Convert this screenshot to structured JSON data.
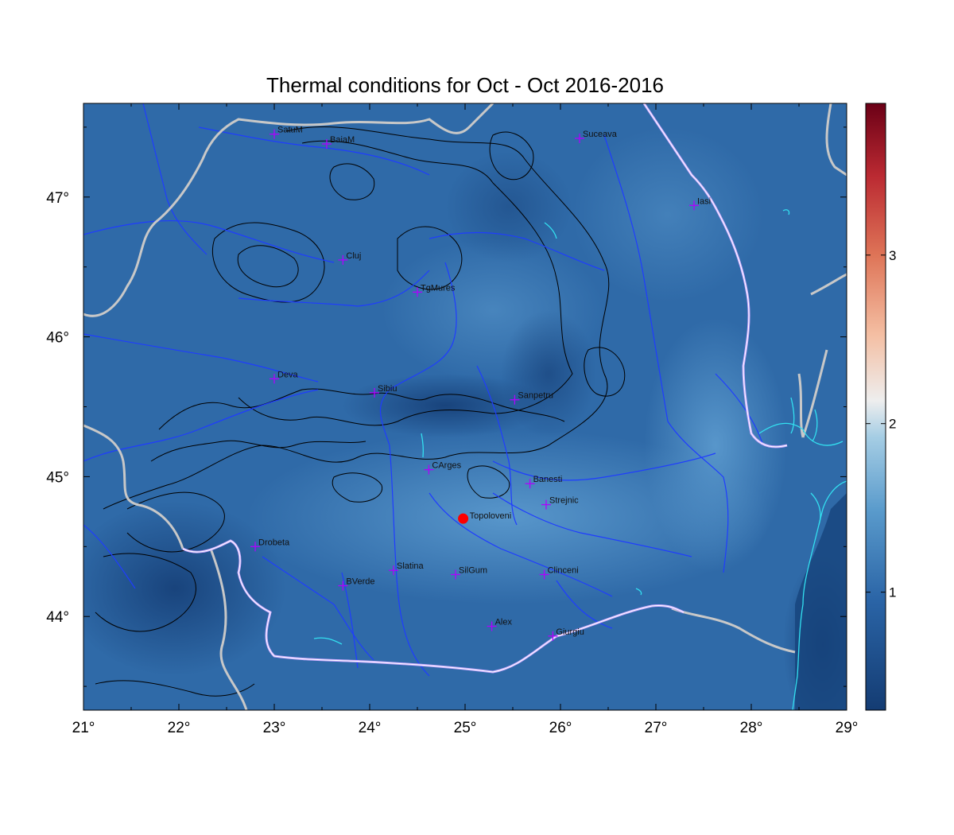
{
  "title": "Thermal conditions for Oct - Oct  2016-2016",
  "x_ticks": [
    "21°",
    "22°",
    "23°",
    "24°",
    "25°",
    "26°",
    "27°",
    "28°",
    "29°"
  ],
  "y_ticks": [
    "47°",
    "46°",
    "45°",
    "44°"
  ],
  "colorbar": {
    "ticks": [
      "1",
      "2",
      "3"
    ],
    "range": [
      0.3,
      3.9
    ]
  },
  "colors": {
    "map_base": "#2f6aa8",
    "map_light": "#4d8cc4",
    "map_dark": "#1d4a86",
    "rivers": "#1f3cff",
    "borders": "#c8c8c8",
    "coast": "#33e0f0",
    "contours": "#000000",
    "marker": "#b000ff",
    "highlight": "#ff0000"
  },
  "cities": [
    {
      "name": "SatuM",
      "lon": 23.0,
      "lat": 47.45
    },
    {
      "name": "BaiaM",
      "lon": 23.55,
      "lat": 47.38
    },
    {
      "name": "Suceava",
      "lon": 26.2,
      "lat": 47.42
    },
    {
      "name": "Iasi",
      "lon": 27.4,
      "lat": 46.94
    },
    {
      "name": "Cluj",
      "lon": 23.72,
      "lat": 46.55
    },
    {
      "name": "TgMures",
      "lon": 24.5,
      "lat": 46.32
    },
    {
      "name": "Deva",
      "lon": 23.0,
      "lat": 45.7
    },
    {
      "name": "Sibiu",
      "lon": 24.05,
      "lat": 45.6
    },
    {
      "name": "Sanpetru",
      "lon": 25.52,
      "lat": 45.55
    },
    {
      "name": "CArges",
      "lon": 24.62,
      "lat": 45.05
    },
    {
      "name": "Banesti",
      "lon": 25.68,
      "lat": 44.95
    },
    {
      "name": "Strejnic",
      "lon": 25.85,
      "lat": 44.8
    },
    {
      "name": "Drobeta",
      "lon": 22.8,
      "lat": 44.5
    },
    {
      "name": "Slatina",
      "lon": 24.25,
      "lat": 44.33
    },
    {
      "name": "SilGum",
      "lon": 24.9,
      "lat": 44.3
    },
    {
      "name": "Clinceni",
      "lon": 25.83,
      "lat": 44.3
    },
    {
      "name": "BVerde",
      "lon": 23.72,
      "lat": 44.22
    },
    {
      "name": "Alex",
      "lon": 25.28,
      "lat": 43.93
    },
    {
      "name": "Giurgiu",
      "lon": 25.92,
      "lat": 43.86
    }
  ],
  "highlight_site": {
    "name": "Topoloveni",
    "lon": 24.98,
    "lat": 44.7
  }
}
